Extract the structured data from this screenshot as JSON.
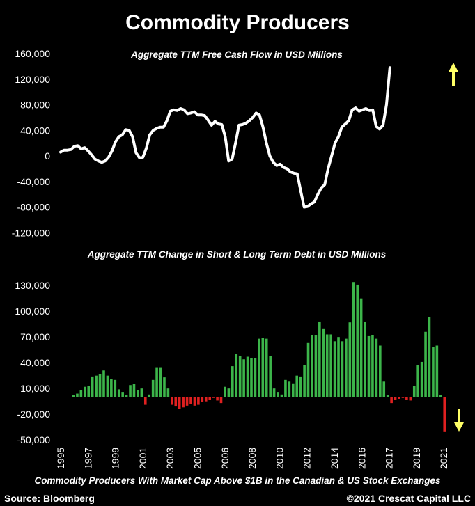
{
  "title": "Commodity Producers",
  "footnote": "Commodity Producers With Market Cap Above $1B in the Canadian & US Stock Exchanges",
  "source": "Source: Bloomberg",
  "copyright": "©2021 Crescat Capital LLC",
  "colors": {
    "background": "#000000",
    "line": "#ffffff",
    "positive": "#3cb54a",
    "negative": "#e02020",
    "arrow": "#ffff66"
  },
  "chart_data": [
    {
      "type": "line",
      "title": "Aggregate TTM Free Cash Flow in USD Millions",
      "ylim": [
        -120000,
        160000
      ],
      "yticks": [
        "160,000",
        "120,000",
        "80,000",
        "40,000",
        "0",
        "-40,000",
        "-80,000",
        "-120,000"
      ],
      "x_start": 1995.0,
      "x_step": 0.25,
      "values": [
        6000,
        9000,
        9000,
        10000,
        15000,
        16000,
        11000,
        13000,
        8000,
        2000,
        -5000,
        -8000,
        -10000,
        -8000,
        -2000,
        8000,
        22000,
        30000,
        33000,
        41000,
        40000,
        30000,
        5000,
        -3000,
        -2000,
        12000,
        33000,
        40000,
        43000,
        45000,
        45000,
        55000,
        70000,
        72000,
        71000,
        74000,
        72000,
        66000,
        67000,
        69000,
        64000,
        64000,
        63000,
        56000,
        48000,
        54000,
        50000,
        49000,
        30000,
        -8000,
        -5000,
        20000,
        48000,
        49000,
        51000,
        55000,
        60000,
        67000,
        64000,
        45000,
        20000,
        0,
        -10000,
        -15000,
        -13000,
        -18000,
        -20000,
        -25000,
        -27000,
        -28000,
        -55000,
        -80000,
        -79000,
        -75000,
        -72000,
        -60000,
        -50000,
        -45000,
        -20000,
        0,
        20000,
        30000,
        45000,
        50000,
        55000,
        72000,
        75000,
        70000,
        72000,
        74000,
        71000,
        72000,
        46000,
        42000,
        48000,
        80000,
        138000
      ],
      "arrow": "up"
    },
    {
      "type": "bar",
      "title": "Aggregate TTM Change in Short & Long Term Debt in USD Millions",
      "ylim": [
        -50000,
        145000
      ],
      "yticks": [
        "130,000",
        "100,000",
        "70,000",
        "40,000",
        "10,000",
        "-20,000",
        "-50,000"
      ],
      "x_start": 1995.5,
      "x_step": 0.25,
      "x_tick_labels": [
        "1995",
        "1997",
        "1999",
        "2001",
        "2003",
        "2005",
        "2006",
        "2008",
        "2010",
        "2012",
        "2014",
        "2016",
        "2017",
        "2019",
        "2021"
      ],
      "values": [
        2000,
        4000,
        8000,
        12000,
        13000,
        24000,
        25000,
        27000,
        31000,
        25000,
        21000,
        20000,
        9000,
        6000,
        2000,
        14000,
        15000,
        8000,
        10000,
        -9000,
        3000,
        20000,
        34000,
        34000,
        23000,
        10000,
        -9000,
        -11000,
        -14000,
        -12000,
        -10000,
        -8000,
        -10000,
        -9000,
        -6000,
        -5000,
        -3000,
        -1000,
        -4000,
        -7000,
        12000,
        10000,
        36000,
        50000,
        48000,
        44000,
        47000,
        45000,
        45000,
        68000,
        69000,
        68000,
        48000,
        10000,
        6000,
        3000,
        20000,
        18000,
        16000,
        25000,
        24000,
        37000,
        63000,
        72000,
        72000,
        88000,
        80000,
        73000,
        73000,
        65000,
        70000,
        65000,
        68000,
        87000,
        134000,
        131000,
        115000,
        88000,
        71000,
        72000,
        68000,
        60000,
        18000,
        2000,
        -7000,
        -3000,
        -2000,
        -1000,
        -3000,
        -4000,
        13000,
        37000,
        41000,
        76000,
        93000,
        58000,
        60000,
        2000,
        -40000
      ],
      "arrow": "down"
    }
  ]
}
